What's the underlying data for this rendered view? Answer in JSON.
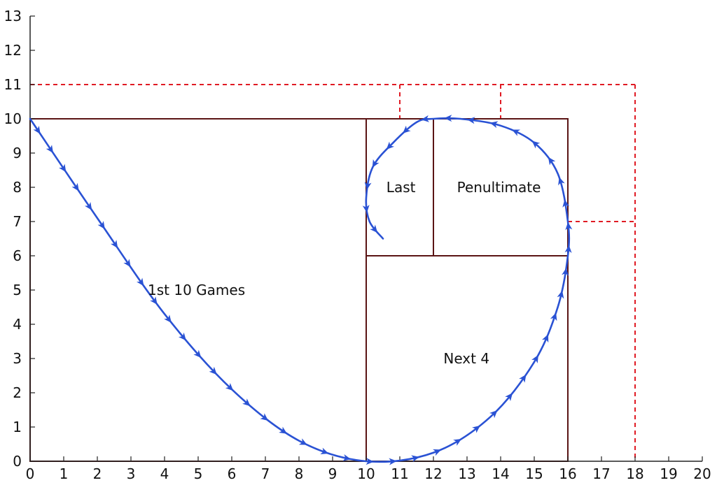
{
  "colors": {
    "background": "#ffffff",
    "axis": "#222222",
    "box": "#5a1414",
    "dashed": "#e01b24",
    "spiral": "#2a52d4"
  },
  "axes": {
    "x_ticks": [
      "0",
      "1",
      "2",
      "3",
      "4",
      "5",
      "6",
      "7",
      "8",
      "9",
      "10",
      "11",
      "12",
      "13",
      "14",
      "15",
      "16",
      "17",
      "18",
      "19",
      "20"
    ],
    "y_ticks": [
      "0",
      "1",
      "2",
      "3",
      "4",
      "5",
      "6",
      "7",
      "8",
      "9",
      "10",
      "11",
      "12",
      "13"
    ]
  },
  "chart_data": {
    "type": "diagram",
    "xlim": [
      0,
      20
    ],
    "ylim": [
      0,
      13
    ],
    "boxes": [
      {
        "name": "outer",
        "x": [
          0,
          16
        ],
        "y": [
          0,
          10
        ]
      },
      {
        "name": "first-ten",
        "x": [
          0,
          10
        ],
        "y": [
          0,
          10
        ]
      },
      {
        "name": "next-four",
        "x": [
          10,
          16
        ],
        "y": [
          0,
          6
        ]
      },
      {
        "name": "last",
        "x": [
          10,
          12
        ],
        "y": [
          6,
          10
        ]
      },
      {
        "name": "penultimate",
        "x": [
          12,
          16
        ],
        "y": [
          6,
          10
        ]
      }
    ],
    "dashed_lines": [
      {
        "points": [
          [
            0,
            11
          ],
          [
            18,
            11
          ]
        ]
      },
      {
        "points": [
          [
            18,
            11
          ],
          [
            18,
            0
          ]
        ]
      },
      {
        "points": [
          [
            16,
            7
          ],
          [
            18,
            7
          ]
        ]
      },
      {
        "points": [
          [
            11,
            11
          ],
          [
            11,
            10
          ]
        ]
      },
      {
        "points": [
          [
            14,
            11
          ],
          [
            14,
            10
          ]
        ]
      }
    ],
    "spiral": {
      "points": [
        [
          0,
          10
        ],
        [
          2,
          7.1
        ],
        [
          4,
          4.3
        ],
        [
          6,
          2.1
        ],
        [
          8,
          0.6
        ],
        [
          10,
          0
        ],
        [
          12,
          0.25
        ],
        [
          13.7,
          1.3
        ],
        [
          15,
          2.9
        ],
        [
          15.7,
          4.5
        ],
        [
          16,
          6
        ],
        [
          16,
          7
        ],
        [
          15.7,
          8.4
        ],
        [
          15,
          9.3
        ],
        [
          14,
          9.8
        ],
        [
          12.8,
          10
        ],
        [
          12,
          10
        ],
        [
          11.5,
          9.9
        ],
        [
          10.8,
          9.3
        ],
        [
          10.2,
          8.6
        ],
        [
          10,
          7.7
        ],
        [
          10.1,
          7
        ],
        [
          10.5,
          6.5
        ]
      ],
      "arrow_count": 52
    },
    "labels": [
      {
        "key": "first_ten",
        "x": 3.5,
        "y": 5
      },
      {
        "key": "next_four",
        "x": 12.3,
        "y": 3
      },
      {
        "key": "last",
        "x": 10.6,
        "y": 8
      },
      {
        "key": "penultimate",
        "x": 12.7,
        "y": 8
      }
    ]
  },
  "labels": {
    "first_ten": "1st 10 Games",
    "next_four": "Next 4",
    "last": "Last",
    "penultimate": "Penultimate"
  }
}
